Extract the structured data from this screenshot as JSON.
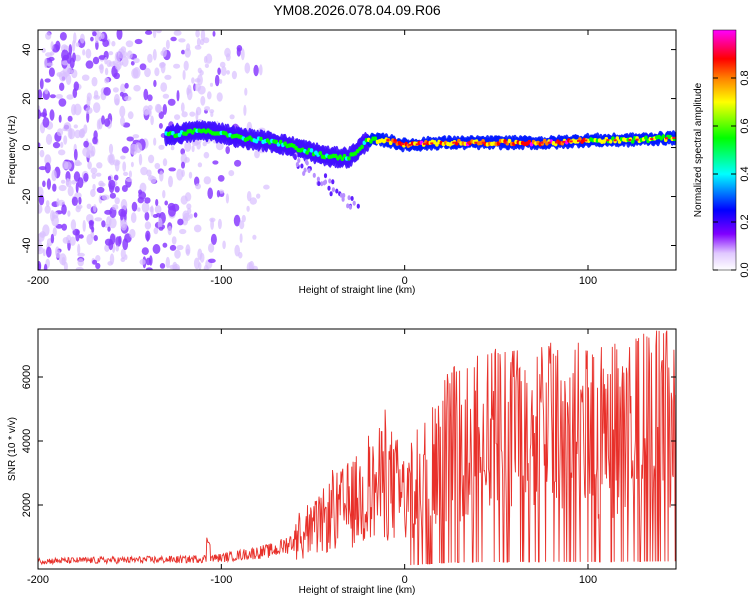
{
  "title": "YM08.2026.078.04.09.R06",
  "chart_data": [
    {
      "type": "heatmap",
      "name": "spectrogram",
      "xlabel": "Height of straight line (km)",
      "ylabel": "Frequency (Hz)",
      "xlim": [
        -200,
        148
      ],
      "ylim": [
        -50,
        48
      ],
      "xticks": [
        -200,
        -100,
        0,
        100
      ],
      "yticks": [
        -40,
        -20,
        0,
        20,
        40
      ],
      "colorbar": {
        "label": "Normalized spectral amplitude",
        "range": [
          0,
          1
        ],
        "ticks": [
          "0.0",
          "0.2",
          "0.4",
          "0.6",
          "0.8"
        ],
        "tick_values": [
          0,
          0.2,
          0.4,
          0.6,
          0.8
        ],
        "colors": [
          "#ffffff",
          "#c8a0ff",
          "#8000ff",
          "#0000ff",
          "#00ffff",
          "#00ff00",
          "#ffff00",
          "#ff8000",
          "#ff0000",
          "#ff00ff"
        ]
      },
      "trace": {
        "x": [
          -130,
          -120,
          -110,
          -100,
          -90,
          -80,
          -70,
          -60,
          -50,
          -40,
          -30,
          -20,
          -10,
          0,
          20,
          40,
          60,
          80,
          100,
          120,
          148
        ],
        "freq": [
          5,
          6,
          7,
          6,
          4,
          3,
          2,
          0,
          -2,
          -4,
          -4,
          3,
          3,
          1,
          2,
          2,
          2,
          2,
          3,
          3,
          4
        ]
      },
      "noise_region_x": [
        -200,
        -75
      ]
    },
    {
      "type": "line",
      "name": "snr",
      "xlabel": "Height of straight line (km)",
      "ylabel": "SNR (10 * v/v)",
      "xlim": [
        -200,
        148
      ],
      "ylim": [
        0,
        7500
      ],
      "xticks": [
        -200,
        -100,
        0,
        100
      ],
      "yticks": [
        2000,
        4000,
        6000
      ],
      "color": "#e8302a",
      "envelope": {
        "x": [
          -200,
          -120,
          -100,
          -70,
          -50,
          -40,
          -30,
          -20,
          -10,
          0,
          10,
          20,
          30,
          40,
          60,
          80,
          100,
          120,
          148
        ],
        "y": [
          250,
          300,
          350,
          600,
          1200,
          1700,
          2000,
          2300,
          2800,
          2200,
          3000,
          3800,
          4200,
          4300,
          4400,
          4500,
          4400,
          4600,
          4800
        ]
      }
    }
  ]
}
